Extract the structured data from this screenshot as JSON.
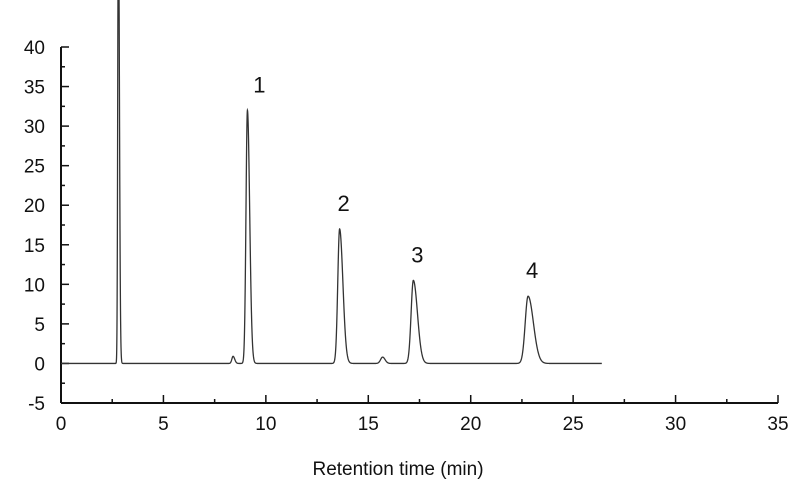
{
  "chart_data": {
    "type": "line",
    "title": "",
    "xlabel": "Retention time (min)",
    "ylabel": "",
    "xlim": [
      0,
      35
    ],
    "ylim": [
      -5,
      40
    ],
    "xticks": [
      "0",
      "5",
      "10",
      "15",
      "20",
      "25",
      "30",
      "35"
    ],
    "yticks": [
      "-5",
      "0",
      "5",
      "10",
      "15",
      "20",
      "25",
      "30",
      "35",
      "40"
    ],
    "grid": false,
    "legend": "none",
    "line_color": "#333333",
    "trace_end": 26.4,
    "baseline": 0,
    "peaks": [
      {
        "label": "",
        "time": 2.8,
        "height": 60,
        "sigma_left": 0.03,
        "sigma_right": 0.05
      },
      {
        "label": "",
        "time": 8.4,
        "height": 0.9,
        "sigma_left": 0.06,
        "sigma_right": 0.08
      },
      {
        "label": "1",
        "time": 9.1,
        "height": 32,
        "sigma_left": 0.07,
        "sigma_right": 0.11
      },
      {
        "label": "2",
        "time": 13.6,
        "height": 17,
        "sigma_left": 0.09,
        "sigma_right": 0.16
      },
      {
        "label": "",
        "time": 15.7,
        "height": 0.8,
        "sigma_left": 0.1,
        "sigma_right": 0.12
      },
      {
        "label": "3",
        "time": 17.2,
        "height": 10.5,
        "sigma_left": 0.11,
        "sigma_right": 0.2
      },
      {
        "label": "4",
        "time": 22.8,
        "height": 8.5,
        "sigma_left": 0.14,
        "sigma_right": 0.26
      }
    ]
  }
}
